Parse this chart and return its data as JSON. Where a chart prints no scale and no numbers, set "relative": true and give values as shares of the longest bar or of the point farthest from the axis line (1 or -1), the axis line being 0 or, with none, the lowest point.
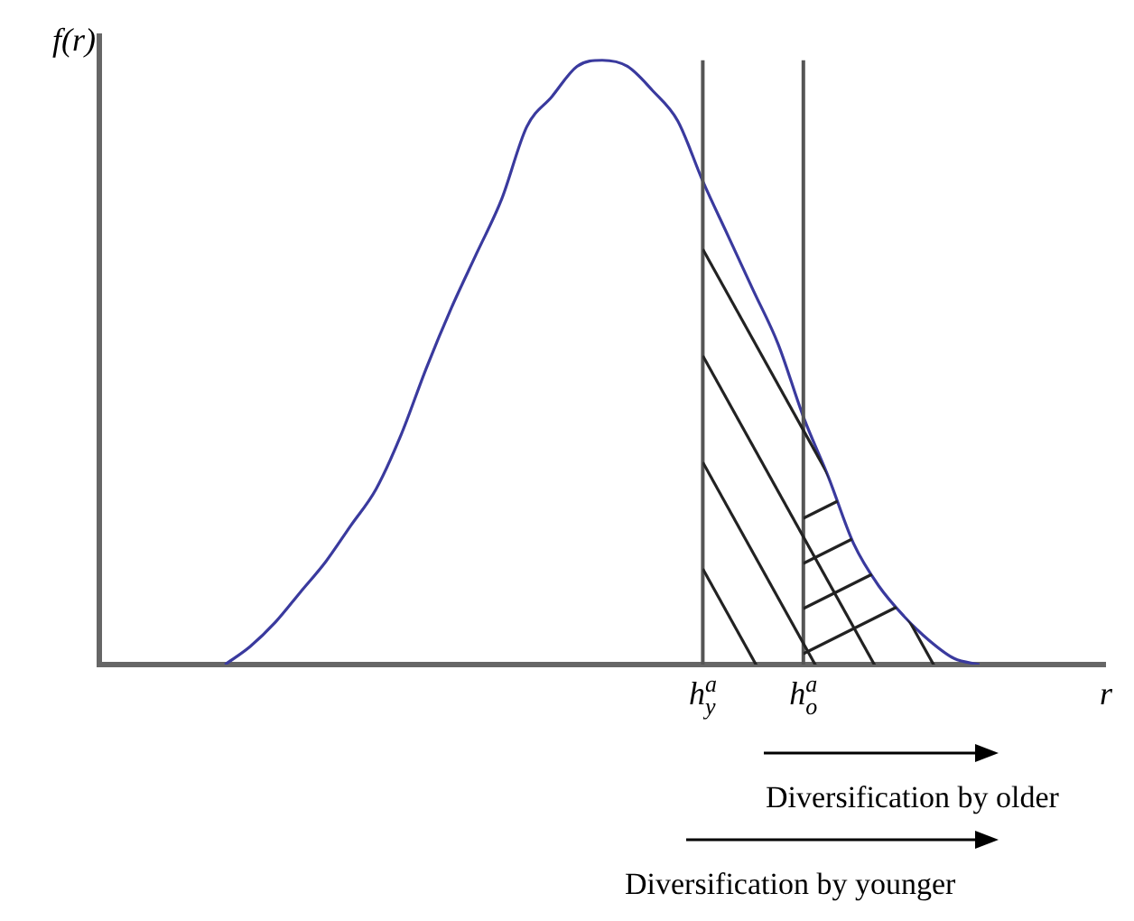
{
  "chart_data": {
    "type": "line",
    "relative": true,
    "xlabel": "r",
    "ylabel": "f(r)",
    "categories": [
      null,
      null,
      null,
      null,
      null,
      null,
      null,
      null,
      null,
      null,
      null,
      null,
      null,
      null,
      null,
      null,
      null,
      null,
      null,
      null,
      null,
      null,
      null,
      null,
      "h$^{a}$$_{y}$",
      null,
      null,
      null,
      "h$^{a}$$_{o}$",
      null,
      null,
      null,
      null,
      null,
      null,
      null,
      null,
      null,
      null,
      null,
      null
    ],
    "series": [
      {
        "color": "#3a3a9e",
        "values": [
          null,
          null,
          null,
          null,
          null,
          0,
          0.03,
          0.07,
          0.12,
          0.17,
          0.23,
          0.29,
          0.38,
          0.49,
          0.59,
          0.68,
          0.77,
          0.89,
          0.94,
          0.99,
          1,
          0.99,
          0.95,
          0.9,
          0.8,
          0.71,
          0.62,
          0.53,
          0.41,
          0.31,
          0.2,
          0.13,
          0.08,
          0.04,
          0.01,
          0,
          null,
          null,
          null,
          null,
          null
        ]
      }
    ],
    "ref_lines": [
      {
        "axis": "x",
        "value": "h$^{a}$$_{y}$",
        "color": "#555555"
      },
      {
        "axis": "x",
        "value": "h$^{a}$$_{o}$",
        "color": "#555555"
      }
    ],
    "annotations": [
      "Diversification by older",
      "Diversification by younger"
    ],
    "grid": false,
    "legend": false,
    "marker": "none",
    "line_style": "solid"
  }
}
